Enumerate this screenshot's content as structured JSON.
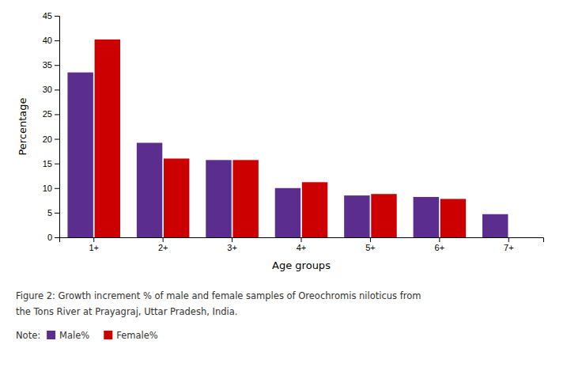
{
  "chart_data": {
    "type": "bar",
    "categories": [
      "1+",
      "2+",
      "3+",
      "4+",
      "5+",
      "6+",
      "7+"
    ],
    "series": [
      {
        "name": "Male%",
        "color": "#5B2D8E",
        "values": [
          33.5,
          19.2,
          15.7,
          10.0,
          8.5,
          8.2,
          4.7
        ]
      },
      {
        "name": "Female%",
        "color": "#CC0000",
        "values": [
          40.2,
          16.0,
          15.7,
          11.2,
          8.8,
          7.8,
          0
        ]
      }
    ],
    "x_label": "Age groups",
    "y_label": "Percentage",
    "ylim": [
      0,
      45
    ],
    "yticks": [
      0,
      5,
      10,
      15,
      20,
      25,
      30,
      35,
      40,
      45
    ],
    "annotations": [
      "Figure 2: Growth increment % of male and female samples of Oreochromis niloticus from",
      "the Tons River at Prayagraj, Uttar Pradesh, India.",
      "Note:"
    ],
    "legend": "bottom",
    "grid": false
  }
}
